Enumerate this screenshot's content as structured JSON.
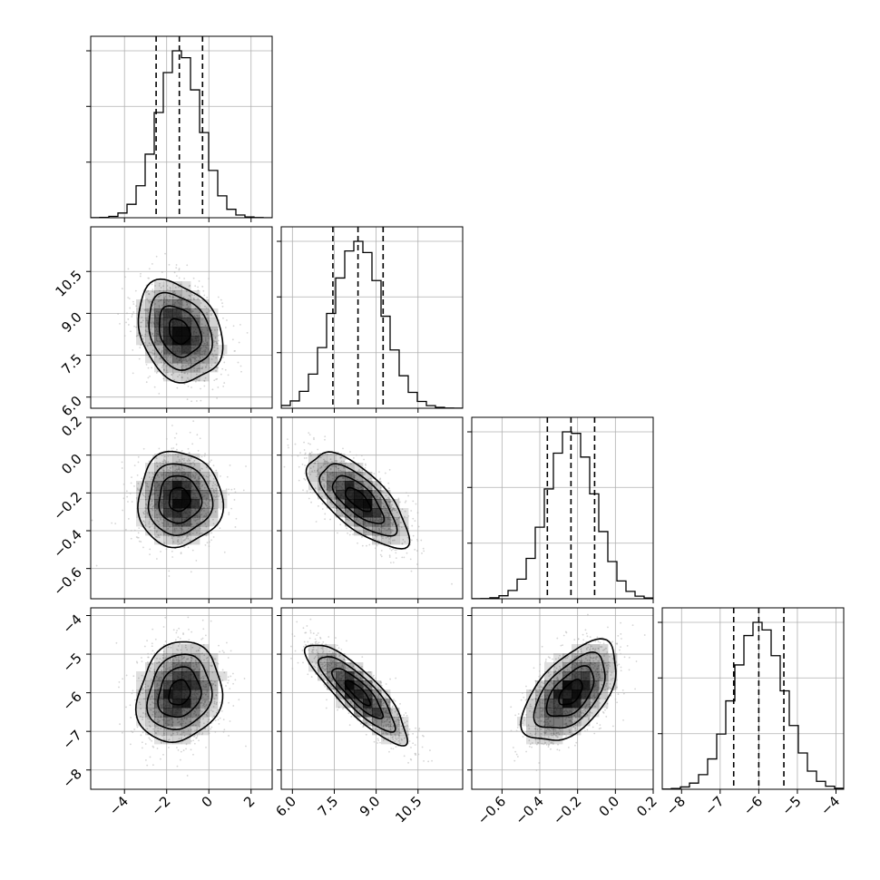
{
  "chart_data": {
    "type": "corner",
    "title": "",
    "parameters": [
      {
        "label": "",
        "range": [
          -5.6,
          3.0
        ],
        "ticks": [
          -4,
          -2,
          0,
          2
        ],
        "tick_labels": [
          "−4",
          "−2",
          "0",
          "2"
        ],
        "hist_ticks": [
          0.333,
          0.667,
          1.0
        ],
        "quantiles": [
          -2.5,
          -1.4,
          -0.3
        ],
        "mean": -1.4,
        "sd": 1.0
      },
      {
        "label": "",
        "range": [
          5.6,
          12.1
        ],
        "ticks": [
          6.0,
          7.5,
          9.0,
          10.5
        ],
        "tick_labels": [
          "6.0",
          "7.5",
          "9.0",
          "10.5"
        ],
        "hist_ticks": [
          0.333,
          0.667,
          1.0
        ],
        "quantiles": [
          7.45,
          8.35,
          9.25
        ],
        "mean": 8.35,
        "sd": 0.9
      },
      {
        "label": "",
        "range": [
          -0.76,
          0.2
        ],
        "ticks": [
          -0.6,
          -0.4,
          -0.2,
          0.0,
          0.2
        ],
        "tick_labels": [
          "−0.6",
          "−0.4",
          "−0.2",
          "0.0",
          "0.2"
        ],
        "hist_ticks": [
          0.333,
          0.667,
          1.0
        ],
        "quantiles": [
          -0.36,
          -0.235,
          -0.11
        ],
        "mean": -0.235,
        "sd": 0.125
      },
      {
        "label": "",
        "range": [
          -8.5,
          -3.8
        ],
        "ticks": [
          -8,
          -7,
          -6,
          -5,
          -4
        ],
        "tick_labels": [
          "−8",
          "−7",
          "−6",
          "−5",
          "−4"
        ],
        "hist_ticks": [
          0.333,
          0.667,
          1.0
        ],
        "quantiles": [
          -6.65,
          -6.0,
          -5.35
        ],
        "mean": -6.0,
        "sd": 0.65
      }
    ],
    "correlations": [
      [
        1.0,
        -0.25,
        0.0,
        0.15
      ],
      [
        -0.25,
        1.0,
        -0.7,
        -0.85
      ],
      [
        0.0,
        -0.7,
        1.0,
        0.55
      ],
      [
        0.15,
        -0.85,
        0.55,
        1.0
      ]
    ],
    "contour_levels_sigma": [
      0.5,
      1.0,
      1.5,
      2.0
    ],
    "colors": {
      "frame": "#000000",
      "grid": "#b0b0b0",
      "points": "#b3b3b3",
      "density": "#000000"
    }
  }
}
